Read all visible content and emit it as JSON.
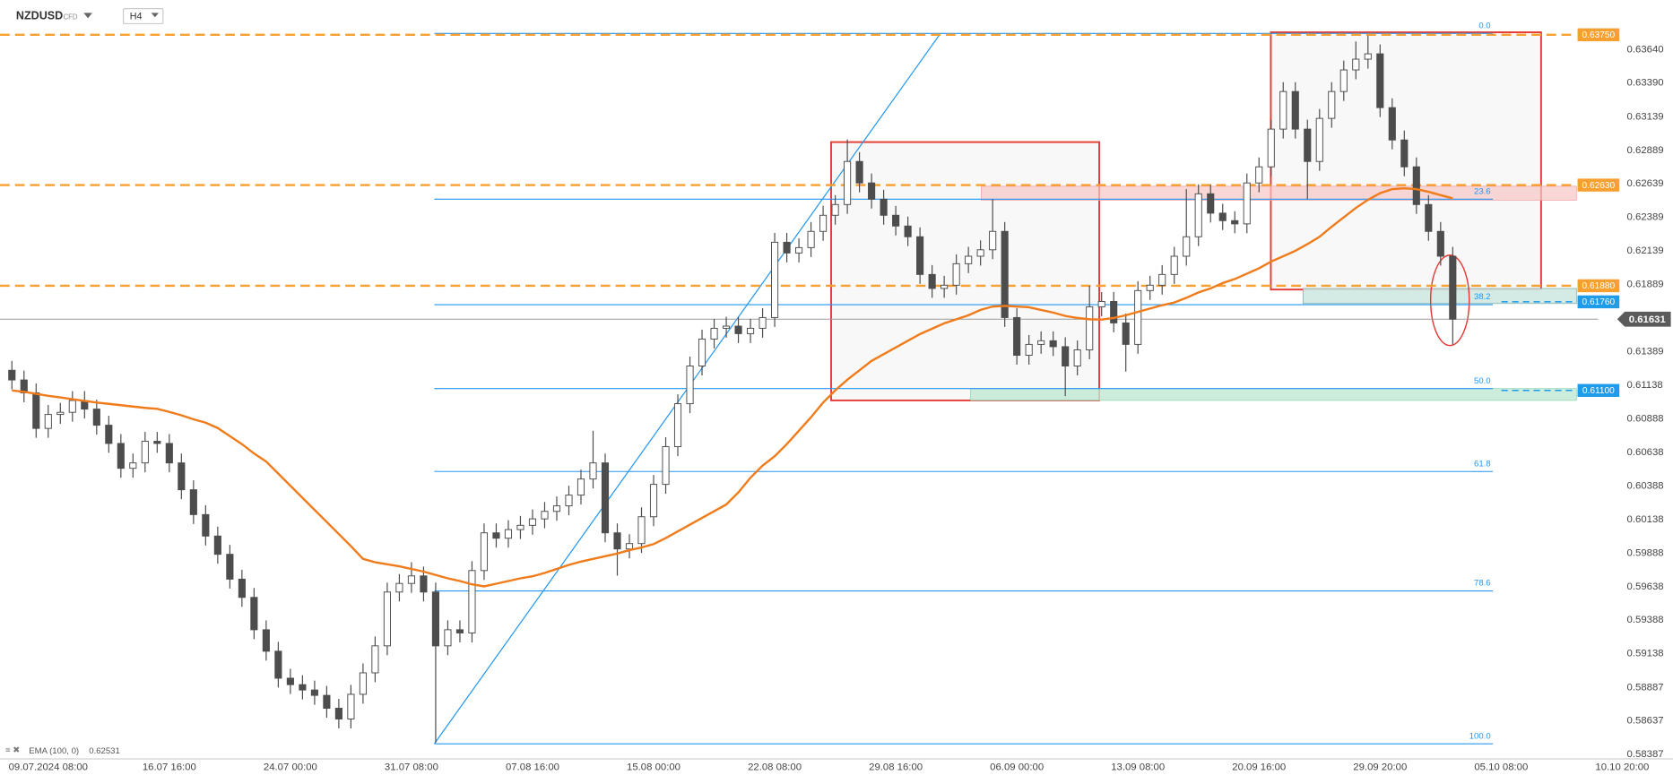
{
  "chart_data": {
    "type": "candlestick",
    "title": "NZDUSD",
    "subtitle": "CFD",
    "interval": "H4",
    "categories": [
      null,
      null,
      null,
      "09.07.2024 08:00",
      null,
      null,
      null,
      null,
      null,
      null,
      null,
      null,
      null,
      "16.07 16:00",
      null,
      null,
      null,
      null,
      null,
      null,
      null,
      null,
      null,
      "24.07 00:00",
      null,
      null,
      null,
      null,
      null,
      null,
      null,
      null,
      null,
      "31.07 08:00",
      null,
      null,
      null,
      null,
      null,
      null,
      null,
      null,
      null,
      "07.08 16:00",
      null,
      null,
      null,
      null,
      null,
      null,
      null,
      null,
      null,
      "15.08 00:00",
      null,
      null,
      null,
      null,
      null,
      null,
      null,
      null,
      null,
      "22.08 08:00",
      null,
      null,
      null,
      null,
      null,
      null,
      null,
      null,
      null,
      "29.08 16:00",
      null,
      null,
      null,
      null,
      null,
      null,
      null,
      null,
      null,
      "06.09 00:00",
      null,
      null,
      null,
      null,
      null,
      null,
      null,
      null,
      null,
      "13.09 08:00",
      null,
      null,
      null,
      null,
      null,
      null,
      null,
      null,
      null,
      "20.09 16:00",
      null,
      null,
      null,
      null,
      null,
      null,
      null,
      null,
      null,
      "29.09 20:00",
      null,
      null,
      null,
      null,
      null,
      null,
      null,
      null,
      null,
      "05.10 08:00",
      null,
      null,
      null,
      null,
      null,
      null,
      null,
      null,
      null,
      "10.10 20:00"
    ],
    "open": [
      0.6125,
      0.61178,
      0.61082,
      0.60817,
      0.60921,
      0.60937,
      0.61025,
      0.60961,
      0.60841,
      0.60705,
      0.6052,
      0.6056,
      0.60721,
      0.60705,
      0.6056,
      0.6036,
      0.60175,
      0.60015,
      0.59879,
      0.59694,
      0.59558,
      0.59317,
      0.59157,
      0.58956,
      0.58908,
      0.58868,
      0.58828,
      0.58732,
      0.58652,
      0.58836,
      0.58996,
      0.59197,
      0.59598,
      0.59662,
      0.59718,
      0.59598,
      0.59197,
      0.59317,
      0.59293,
      0.59758,
      0.60039,
      0.59999,
      0.60063,
      0.60095,
      0.60143,
      0.60199,
      0.6024,
      0.6032,
      0.6044,
      0.6056,
      0.60039,
      0.59919,
      0.59959,
      0.60159,
      0.604,
      0.60681,
      0.61001,
      0.61282,
      0.61483,
      0.61563,
      0.61579,
      0.61523,
      0.61563,
      0.61643,
      0.62204,
      0.62124,
      0.62164,
      0.62285,
      0.62405,
      0.62485,
      0.62806,
      0.62646,
      0.62525,
      0.62405,
      0.62325,
      0.62245,
      0.61964,
      0.6186,
      0.61884,
      0.62044,
      0.621,
      0.62148,
      0.62285,
      0.61643,
      0.61362,
      0.61443,
      0.6147,
      0.61426,
      0.61282,
      0.61402,
      0.61723,
      0.61763,
      0.61603,
      0.61443,
      0.61844,
      0.61884,
      0.61964,
      0.621,
      0.62245,
      0.62565,
      0.62421,
      0.62365,
      0.62341,
      0.62646,
      0.62766,
      0.63047,
      0.63327,
      0.63047,
      0.62806,
      0.63127,
      0.63327,
      0.63488,
      0.63568,
      0.63608,
      0.63207,
      0.62966,
      0.62766,
      0.62485,
      0.62285,
      0.621,
      null,
      null,
      null,
      null,
      null,
      null,
      null,
      null,
      null,
      null,
      null,
      null,
      null,
      null
    ],
    "high": [
      0.6132,
      0.61248,
      0.61152,
      0.60991,
      0.61007,
      0.61095,
      0.61095,
      0.61031,
      0.60911,
      0.60775,
      0.6063,
      0.60791,
      0.60791,
      0.60775,
      0.6063,
      0.6043,
      0.60245,
      0.60085,
      0.59949,
      0.59764,
      0.59628,
      0.59387,
      0.59227,
      0.59026,
      0.58978,
      0.58938,
      0.58898,
      0.58802,
      0.58906,
      0.59066,
      0.59267,
      0.59668,
      0.59732,
      0.5982,
      0.59788,
      0.59668,
      0.59387,
      0.59387,
      0.59828,
      0.60109,
      0.60109,
      0.60133,
      0.60165,
      0.60213,
      0.60269,
      0.6031,
      0.6039,
      0.6051,
      0.608,
      0.6063,
      0.60109,
      0.60029,
      0.60229,
      0.6047,
      0.60751,
      0.61071,
      0.61352,
      0.61553,
      0.61633,
      0.61649,
      0.61649,
      0.61633,
      0.61713,
      0.62274,
      0.62274,
      0.62234,
      0.62355,
      0.62475,
      0.62555,
      0.6297,
      0.62876,
      0.62716,
      0.62595,
      0.62475,
      0.62395,
      0.62315,
      0.62034,
      0.61954,
      0.62114,
      0.6217,
      0.62218,
      0.62525,
      0.62355,
      0.61713,
      0.61513,
      0.6154,
      0.6154,
      0.61496,
      0.61472,
      0.6188,
      0.61833,
      0.61833,
      0.61673,
      0.61914,
      0.61954,
      0.62034,
      0.6217,
      0.626,
      0.62635,
      0.62635,
      0.62491,
      0.62435,
      0.62716,
      0.62836,
      0.63117,
      0.63397,
      0.63397,
      0.63117,
      0.63197,
      0.63397,
      0.63558,
      0.637,
      0.63744,
      0.63678,
      0.63277,
      0.63036,
      0.62836,
      0.62555,
      0.62355,
      0.6217,
      null,
      null,
      null,
      null,
      null,
      null,
      null,
      null,
      null,
      null,
      null,
      null,
      null,
      null
    ],
    "low": [
      0.61108,
      0.61012,
      0.60747,
      0.60747,
      0.60851,
      0.60867,
      0.60891,
      0.60771,
      0.60635,
      0.6045,
      0.6045,
      0.6049,
      0.60635,
      0.6049,
      0.6029,
      0.60105,
      0.59945,
      0.59809,
      0.59624,
      0.59488,
      0.59247,
      0.59087,
      0.58886,
      0.58838,
      0.58798,
      0.58758,
      0.58662,
      0.58582,
      0.58582,
      0.58766,
      0.58926,
      0.59127,
      0.59528,
      0.59592,
      0.59528,
      0.58475,
      0.59127,
      0.59223,
      0.59223,
      0.59688,
      0.59929,
      0.59929,
      0.59993,
      0.60025,
      0.60073,
      0.60129,
      0.6017,
      0.6025,
      0.6037,
      0.59969,
      0.5972,
      0.59849,
      0.59889,
      0.60089,
      0.6033,
      0.60611,
      0.60931,
      0.61212,
      0.61413,
      0.61493,
      0.61453,
      0.61453,
      0.61493,
      0.61573,
      0.62054,
      0.62054,
      0.62094,
      0.62215,
      0.62335,
      0.62415,
      0.62576,
      0.62455,
      0.62335,
      0.62255,
      0.62175,
      0.61894,
      0.6179,
      0.6179,
      0.61814,
      0.61974,
      0.6203,
      0.62078,
      0.61573,
      0.61292,
      0.61292,
      0.61373,
      0.61356,
      0.61058,
      0.61212,
      0.61332,
      0.61653,
      0.61533,
      0.6124,
      0.61373,
      0.61774,
      0.61814,
      0.61894,
      0.6203,
      0.62175,
      0.62351,
      0.62295,
      0.62271,
      0.62271,
      0.62576,
      0.62696,
      0.62977,
      0.62977,
      0.62525,
      0.62736,
      0.63057,
      0.63257,
      0.63418,
      0.63498,
      0.63137,
      0.62896,
      0.62696,
      0.62415,
      0.62215,
      0.6203,
      0.61443,
      null,
      null,
      null,
      null,
      null,
      null,
      null,
      null,
      null,
      null,
      null,
      null,
      null,
      null
    ],
    "close": [
      0.61178,
      0.61082,
      0.60817,
      0.60921,
      0.60937,
      0.61025,
      0.60961,
      0.60841,
      0.60705,
      0.6052,
      0.6056,
      0.60721,
      0.60705,
      0.6056,
      0.6036,
      0.60175,
      0.60015,
      0.59879,
      0.59694,
      0.59558,
      0.59317,
      0.59157,
      0.58956,
      0.58908,
      0.58868,
      0.58828,
      0.58732,
      0.58652,
      0.58836,
      0.58996,
      0.59197,
      0.59598,
      0.59662,
      0.59718,
      0.59598,
      0.59197,
      0.59317,
      0.59293,
      0.59758,
      0.60039,
      0.59999,
      0.60063,
      0.60095,
      0.60143,
      0.60199,
      0.6024,
      0.6032,
      0.6044,
      0.6056,
      0.60039,
      0.59919,
      0.59959,
      0.60159,
      0.604,
      0.60681,
      0.61001,
      0.61282,
      0.61483,
      0.61563,
      0.61579,
      0.61523,
      0.61563,
      0.61643,
      0.62204,
      0.62124,
      0.62164,
      0.62285,
      0.62405,
      0.62485,
      0.62806,
      0.62646,
      0.62525,
      0.62405,
      0.62325,
      0.62245,
      0.61964,
      0.6186,
      0.61884,
      0.62044,
      0.621,
      0.62148,
      0.62285,
      0.61643,
      0.61362,
      0.61443,
      0.6147,
      0.61426,
      0.61282,
      0.61402,
      0.61723,
      0.61763,
      0.61603,
      0.61443,
      0.61844,
      0.61884,
      0.61964,
      0.621,
      0.62245,
      0.62565,
      0.62421,
      0.62365,
      0.62341,
      0.62646,
      0.62766,
      0.63047,
      0.63327,
      0.63047,
      0.62806,
      0.63127,
      0.63327,
      0.63488,
      0.63568,
      0.63608,
      0.63207,
      0.62966,
      0.62766,
      0.62485,
      0.62285,
      0.621,
      0.61631,
      null,
      null,
      null,
      null,
      null,
      null,
      null,
      null,
      null,
      null,
      null,
      null,
      null,
      null
    ],
    "up_color": "#ffffff",
    "down_color": "#4d4d4d",
    "wick_color": "#4d4d4d",
    "ema": {
      "name": "EMA (100, 0)",
      "last": 0.62531,
      "color": "#f07b1a",
      "values": [
        0.611,
        0.6109,
        0.61075,
        0.6106,
        0.61048,
        0.61035,
        0.61022,
        0.6101,
        0.61,
        0.6099,
        0.6098,
        0.6097,
        0.60963,
        0.6094,
        0.60915,
        0.60885,
        0.6086,
        0.6082,
        0.6076,
        0.607,
        0.6063,
        0.6057,
        0.6048,
        0.6039,
        0.603,
        0.6021,
        0.6012,
        0.6003,
        0.5994,
        0.59845,
        0.5982,
        0.59805,
        0.5979,
        0.5977,
        0.5975,
        0.59725,
        0.597,
        0.5968,
        0.59655,
        0.5964,
        0.5966,
        0.5968,
        0.597,
        0.59715,
        0.5974,
        0.5977,
        0.598,
        0.59825,
        0.59845,
        0.59865,
        0.59885,
        0.5991,
        0.5993,
        0.59955,
        0.6,
        0.6005,
        0.601,
        0.6015,
        0.602,
        0.6025,
        0.6034,
        0.6045,
        0.6054,
        0.6061,
        0.607,
        0.608,
        0.609,
        0.6101,
        0.611,
        0.6118,
        0.6125,
        0.6132,
        0.6137,
        0.6142,
        0.6147,
        0.6152,
        0.6156,
        0.616,
        0.6163,
        0.6166,
        0.617,
        0.61725,
        0.6173,
        0.61725,
        0.6172,
        0.617,
        0.6168,
        0.61655,
        0.6164,
        0.6163,
        0.61628,
        0.6164,
        0.6166,
        0.61685,
        0.6171,
        0.61735,
        0.61755,
        0.6179,
        0.6183,
        0.6186,
        0.619,
        0.6193,
        0.6197,
        0.6201,
        0.6206,
        0.621,
        0.6214,
        0.6219,
        0.62245,
        0.6232,
        0.6239,
        0.6246,
        0.6252,
        0.6257,
        0.626,
        0.62606,
        0.626,
        0.6258,
        0.62555,
        0.62531,
        null,
        null,
        null,
        null,
        null,
        null,
        null,
        null,
        null,
        null,
        null,
        null,
        null,
        null
      ]
    },
    "ylim": [
      0.58355,
      0.64009
    ],
    "yticks": [
      {
        "value": 0.6364,
        "label": "0.63640"
      },
      {
        "value": 0.6339,
        "label": "0.63390"
      },
      0.63139,
      0.62889,
      0.62639,
      0.62389,
      0.62139,
      0.61889,
      0.61389,
      0.61138,
      0.60888,
      0.60638,
      0.60388,
      0.60138,
      0.59888,
      0.59638,
      0.59388,
      0.59138,
      0.58887,
      0.58637,
      0.58387
    ],
    "grid": false,
    "levels": [
      {
        "value": 0.6375,
        "label": "0.63750",
        "color": "#f7a030",
        "line": "full"
      },
      {
        "value": 0.6263,
        "label": "0.62630",
        "color": "#f7a030",
        "line": "full"
      },
      {
        "value": 0.6188,
        "label": "0.61880",
        "color": "#f7a030",
        "line": "full"
      },
      {
        "value": 0.6176,
        "label": "0.61760",
        "color": "#1e9be9",
        "line": "short"
      },
      {
        "value": 0.611,
        "label": "0.61100",
        "color": "#1e9be9",
        "line": "short"
      }
    ],
    "current": 0.61631,
    "current_color": "#5b5b5b",
    "fib": {
      "color": "#2196f3",
      "levels": [
        {
          "label": "0.0",
          "value": 0.6376
        },
        {
          "label": "23.6",
          "value": 0.62525
        },
        {
          "label": "38.2",
          "value": 0.61739
        },
        {
          "label": "50.0",
          "value": 0.61114
        },
        {
          "label": "61.8",
          "value": 0.60496
        },
        {
          "label": "78.6",
          "value": 0.59606
        },
        {
          "label": "100.0",
          "value": 0.58467
        }
      ]
    }
  }
}
